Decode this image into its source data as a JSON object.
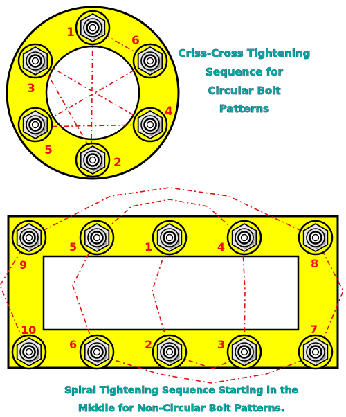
{
  "colors": {
    "flange": "#ffff00",
    "outline": "#000000",
    "bore": "#ffffff",
    "nut_face": "#e6e6e6",
    "nut_shade": "#8c8c8c",
    "sequence_line": "#e01010",
    "bolt_number": "#ee1111",
    "caption": "#00a8a8"
  },
  "circular_pattern": {
    "caption_lines": [
      "Criss-Cross Tightening",
      "Sequence for",
      "Circular Bolt",
      "Patterns"
    ],
    "sequence_labels": [
      "1",
      "2",
      "3",
      "4",
      "5",
      "6"
    ]
  },
  "rectangular_pattern": {
    "top_row_labels": [
      "9",
      "5",
      "1",
      "4",
      "8"
    ],
    "bottom_row_labels": [
      "10",
      "6",
      "2",
      "3",
      "7"
    ],
    "caption_lines": [
      "Spiral Tightening Sequence Starting in the",
      "Middle for Non-Circular Bolt Patterns."
    ]
  }
}
